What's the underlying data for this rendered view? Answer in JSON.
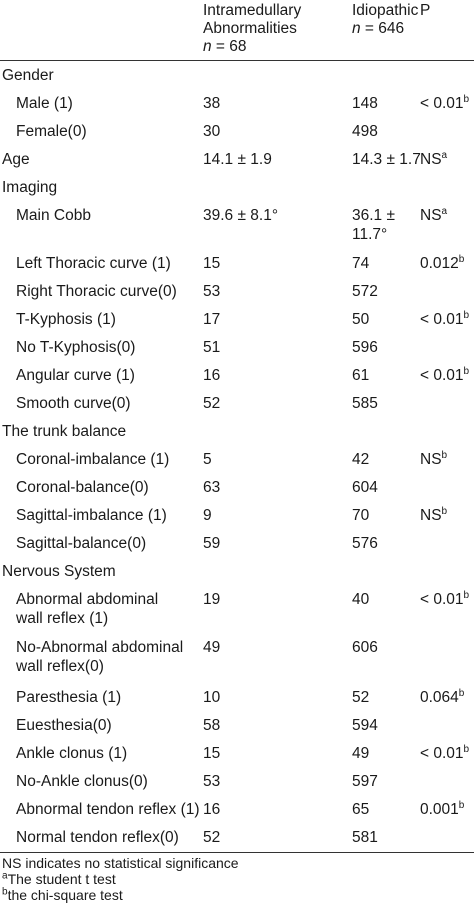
{
  "header": {
    "col1_line1": "Intramedullary",
    "col1_line2": "Abnormalities",
    "col1_n_var": "n",
    "col1_n_val": " = 68",
    "col2_line1": "Idiopathic",
    "col2_n_var": "n",
    "col2_n_val": " = 646",
    "col3": "P"
  },
  "rows": [
    {
      "label": "Gender",
      "a": "",
      "b": "",
      "p": "",
      "sup": ""
    },
    {
      "label": "Male (1)",
      "a": "38",
      "b": "148",
      "p": "< 0.01",
      "sup": "b"
    },
    {
      "label": "Female(0)",
      "a": "30",
      "b": "498",
      "p": "",
      "sup": ""
    },
    {
      "label": "Age",
      "a": "14.1 ± 1.9",
      "b": "14.3 ± 1.7",
      "p": "NS",
      "sup": "a"
    },
    {
      "label": "Imaging",
      "a": "",
      "b": "",
      "p": "",
      "sup": ""
    },
    {
      "label": "Main Cobb",
      "a": "39.6 ± 8.1°",
      "b": "36.1 ±",
      "b2": "11.7°",
      "p": "NS",
      "sup": "a"
    },
    {
      "label": "Left Thoracic curve (1)",
      "a": "15",
      "b": "74",
      "p": "0.012",
      "sup": "b"
    },
    {
      "label": "Right Thoracic curve(0)",
      "a": "53",
      "b": "572",
      "p": "",
      "sup": ""
    },
    {
      "label": "T-Kyphosis (1)",
      "a": "17",
      "b": "50",
      "p": "< 0.01",
      "sup": "b"
    },
    {
      "label": "No T-Kyphosis(0)",
      "a": "51",
      "b": "596",
      "p": "",
      "sup": ""
    },
    {
      "label": "Angular curve (1)",
      "a": "16",
      "b": "61",
      "p": "< 0.01",
      "sup": "b"
    },
    {
      "label": "Smooth curve(0)",
      "a": "52",
      "b": "585",
      "p": "",
      "sup": ""
    },
    {
      "label": "The trunk balance",
      "a": "",
      "b": "",
      "p": "",
      "sup": ""
    },
    {
      "label": "Coronal-imbalance (1)",
      "a": "5",
      "b": "42",
      "p": "NS",
      "sup": "b"
    },
    {
      "label": "Coronal-balance(0)",
      "a": "63",
      "b": "604",
      "p": "",
      "sup": ""
    },
    {
      "label": "Sagittal-imbalance (1)",
      "a": "9",
      "b": "70",
      "p": "NS",
      "sup": "b"
    },
    {
      "label": "Sagittal-balance(0)",
      "a": "59",
      "b": "576",
      "p": "",
      "sup": ""
    },
    {
      "label": "Nervous System",
      "a": "",
      "b": "",
      "p": "",
      "sup": ""
    },
    {
      "label": "Abnormal abdominal",
      "label2": "wall reflex (1)",
      "a": "19",
      "b": "40",
      "p": "< 0.01",
      "sup": "b"
    },
    {
      "label": "No-Abnormal abdominal",
      "label2": "wall reflex(0)",
      "a": "49",
      "b": "606",
      "p": "",
      "sup": ""
    },
    {
      "label": "Paresthesia (1)",
      "a": "10",
      "b": "52",
      "p": "0.064",
      "sup": "b"
    },
    {
      "label": "Euesthesia(0)",
      "a": "58",
      "b": "594",
      "p": "",
      "sup": ""
    },
    {
      "label": "Ankle clonus (1)",
      "a": "15",
      "b": "49",
      "p": "< 0.01",
      "sup": "b"
    },
    {
      "label": "No-Ankle clonus(0)",
      "a": "53",
      "b": "597",
      "p": "",
      "sup": ""
    },
    {
      "label": "Abnormal tendon reflex (1)",
      "a": "16",
      "b": "65",
      "p": "0.001",
      "sup": "b"
    },
    {
      "label": "Normal tendon reflex(0)",
      "a": "52",
      "b": "581",
      "p": "",
      "sup": ""
    }
  ],
  "footnotes": {
    "ns": "NS indicates no statistical significance",
    "a_mark": "a",
    "a_text": "The student t test",
    "b_mark": "b",
    "b_text": "the chi-square test"
  }
}
